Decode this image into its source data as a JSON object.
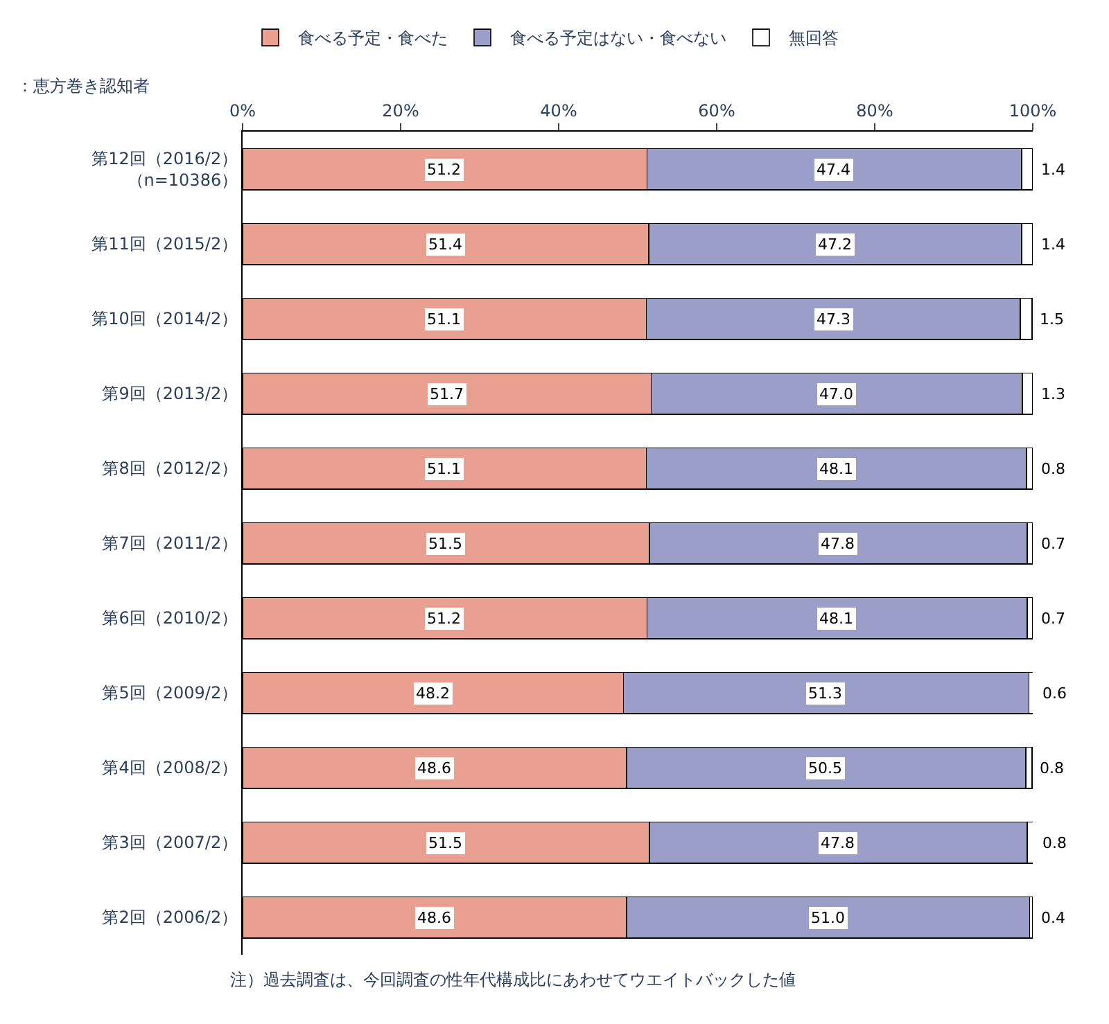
{
  "chart_data": {
    "type": "bar",
    "orientation": "horizontal",
    "stacked": true,
    "title": "：恵方巻き認知者",
    "categories": [
      "第12回（2016/2）（n=10386）",
      "第11回（2015/2）",
      "第10回（2014/2）",
      "第9回（2013/2）",
      "第8回（2012/2）",
      "第7回（2011/2）",
      "第6回（2010/2）",
      "第5回（2009/2）",
      "第4回（2008/2）",
      "第3回（2007/2）",
      "第2回（2006/2）"
    ],
    "series": [
      {
        "name": "食べる予定・食べた",
        "color": "#e9a090",
        "values": [
          51.2,
          51.4,
          51.1,
          51.7,
          51.1,
          51.5,
          51.2,
          48.2,
          48.6,
          51.5,
          48.6
        ],
        "value_labels": [
          "51.2",
          "51.4",
          "51.1",
          "51.7",
          "51.1",
          "51.5",
          "51.2",
          "48.2",
          "48.6",
          "51.5",
          "48.6"
        ]
      },
      {
        "name": "食べる予定はない・食べない",
        "color": "#9b9ec8",
        "values": [
          47.4,
          47.2,
          47.3,
          47.0,
          48.1,
          47.8,
          48.1,
          51.3,
          50.5,
          47.8,
          51.0
        ],
        "value_labels": [
          "47.4",
          "47.2",
          "47.3",
          "47.0",
          "48.1",
          "47.8",
          "48.1",
          "51.3",
          "50.5",
          "47.8",
          "51.0"
        ]
      },
      {
        "name": "無回答",
        "color": "#ffffff",
        "values": [
          1.4,
          1.4,
          1.5,
          1.3,
          0.8,
          0.7,
          0.7,
          0.6,
          0.8,
          0.8,
          0.4
        ],
        "value_labels": [
          "1.4",
          "1.4",
          "1.5",
          "1.3",
          "0.8",
          "0.7",
          "0.7",
          "0.6",
          "0.8",
          "0.8",
          "0.4"
        ]
      }
    ],
    "xlim": [
      0,
      100
    ],
    "xticks": [
      {
        "value": 0,
        "label": "0%"
      },
      {
        "value": 20,
        "label": "20%"
      },
      {
        "value": 40,
        "label": "40%"
      },
      {
        "value": 60,
        "label": "60%"
      },
      {
        "value": 80,
        "label": "80%"
      },
      {
        "value": 100,
        "label": "100%"
      }
    ],
    "legend": "top",
    "annotations": [
      "注）過去調査は、今回調査の性年代構成比にあわせてウエイトバックした値"
    ]
  }
}
